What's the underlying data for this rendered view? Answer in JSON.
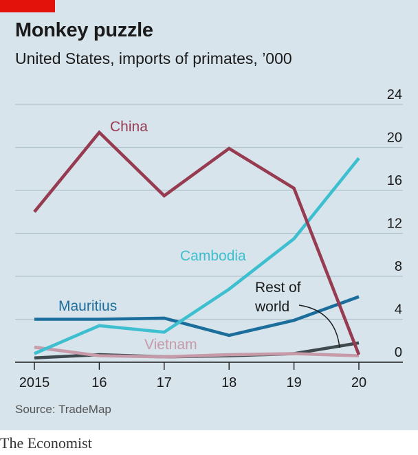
{
  "title": "Monkey puzzle",
  "subtitle": "United States, imports of primates, ’000",
  "source": "Source: TradeMap",
  "brand": "The Economist",
  "colors": {
    "background": "#d7e4ec",
    "accent_tag": "#e3120b",
    "china": "#973b51",
    "cambodia": "#3ebfcf",
    "mauritius": "#1b6e9b",
    "vietnam": "#c69aa8",
    "rest_of_world": "#3f4a4f"
  },
  "chart_data": {
    "type": "line",
    "x": [
      2015,
      2016,
      2017,
      2018,
      2019,
      2020
    ],
    "x_tick_labels": [
      "2015",
      "16",
      "17",
      "18",
      "19",
      "20"
    ],
    "ylim": [
      0,
      24
    ],
    "y_ticks": [
      0,
      4,
      8,
      12,
      16,
      20,
      24
    ],
    "y_axis_side": "right",
    "grid": true,
    "series": [
      {
        "name": "China",
        "color_key": "china",
        "values": [
          14.0,
          21.4,
          15.5,
          19.9,
          16.2,
          0.7
        ]
      },
      {
        "name": "Cambodia",
        "color_key": "cambodia",
        "values": [
          0.8,
          3.4,
          2.8,
          6.8,
          11.5,
          19.0
        ]
      },
      {
        "name": "Mauritius",
        "color_key": "mauritius",
        "values": [
          4.0,
          4.0,
          4.1,
          2.5,
          3.9,
          6.1
        ]
      },
      {
        "name": "Vietnam",
        "color_key": "vietnam",
        "values": [
          1.4,
          0.6,
          0.5,
          0.7,
          0.8,
          0.6
        ]
      },
      {
        "name": "Rest of world",
        "color_key": "rest_of_world",
        "values": [
          0.4,
          0.7,
          0.5,
          0.6,
          0.8,
          1.8
        ]
      }
    ],
    "labels": [
      {
        "text": "China",
        "series": "China"
      },
      {
        "text": "Cambodia",
        "series": "Cambodia"
      },
      {
        "text": "Mauritius",
        "series": "Mauritius"
      },
      {
        "text": "Vietnam",
        "series": "Vietnam"
      },
      {
        "text_lines": [
          "Rest of",
          "world"
        ],
        "series": "Rest of world"
      }
    ]
  }
}
